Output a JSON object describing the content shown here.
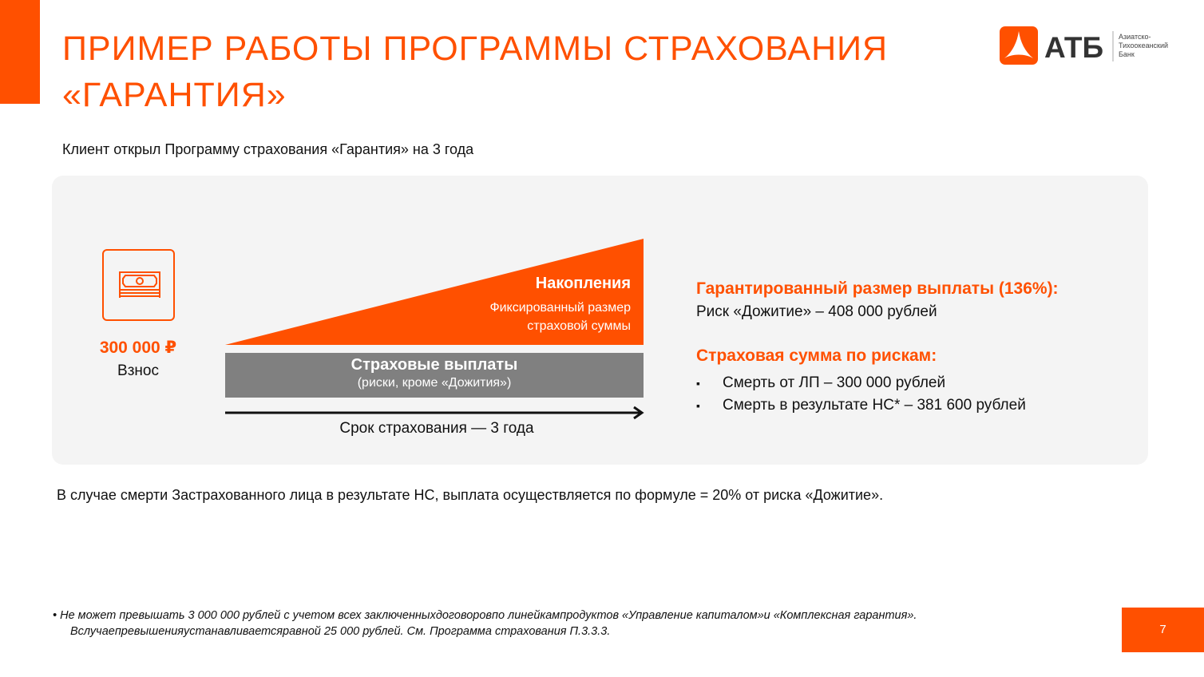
{
  "title_lines": [
    "ПРИМЕР РАБОТЫ ПРОГРАММЫ СТРАХОВАНИЯ",
    "«ГАРАНТИЯ»"
  ],
  "logo": {
    "name": "АТБ",
    "subtitle": [
      "Азиатско-",
      "Тихоокеанский",
      "Банк"
    ]
  },
  "subtitle": "Клиент открыл Программу  страхования  «Гарантия» на 3 года",
  "deposit": {
    "amount": "300 000 ₽",
    "label": "Взнос"
  },
  "accumulation": {
    "title": "Накопления",
    "sub_lines": [
      "Фиксированный размер",
      "страховой суммы"
    ]
  },
  "payouts": {
    "title": "Страховые выплаты",
    "sub": "(риски, кроме «Дожития»)"
  },
  "term": "Срок страхования  — 3 года",
  "guaranteed": {
    "title": "Гарантированный размер выплаты (136%):",
    "text": "Риск «Дожитие» – 408 000 рублей"
  },
  "sum_insured": {
    "title": "Страховая сумма по рискам:",
    "items": [
      "Смерть  от ЛП – 300 000 рублей",
      "Смерть в результате НС* – 381 600 рублей"
    ]
  },
  "note": "В случае смерти  Застрахованного  лица в результате НС, выплата осуществляется по формуле = 20% от риска   «Дожитие».",
  "footnote": [
    "• Не может превышать 3 000 000 рублей с учетом всех заключенныхдоговоровпо линейкампродуктов «Управление капиталом»и «Комплексная гарантия».",
    "Вслучаепревышенияустанавливаетсяравной 25 000 рублей. См. Программа страхования П.3.3.3."
  ],
  "page_number": "7",
  "colors": {
    "accent": "#ff5000",
    "bar": "#808080",
    "panel": "#f4f4f4"
  }
}
